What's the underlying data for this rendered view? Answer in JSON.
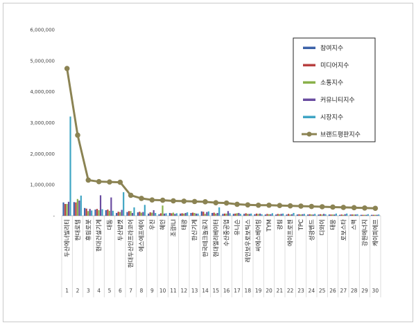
{
  "chart_data": {
    "type": "bar",
    "title": "",
    "xlabel": "",
    "ylabel": "",
    "ylim": [
      0,
      6000000
    ],
    "yticks": [
      "-",
      "1,000,000",
      "2,000,000",
      "3,000,000",
      "4,000,000",
      "5,000,000",
      "6,000,000"
    ],
    "ranks": [
      "1",
      "2",
      "3",
      "4",
      "5",
      "6",
      "7",
      "8",
      "9",
      "10",
      "11",
      "12",
      "13",
      "14",
      "15",
      "16",
      "17",
      "18",
      "19",
      "20",
      "21",
      "22",
      "23",
      "24",
      "25",
      "26",
      "27",
      "28",
      "29",
      "30"
    ],
    "categories": [
      "두산에너빌리티",
      "현대로템",
      "휴림로봇",
      "현대건설기계",
      "대동",
      "두산밥캣",
      "현대두산인프라코어",
      "에스에프에이",
      "우진",
      "혜인",
      "조광ILI",
      "태광",
      "한신기계",
      "한국테크놀로지",
      "현대엘리베이터",
      "수산중공업",
      "유니슨",
      "레인보우로보틱스",
      "씨에스베어링",
      "TYM",
      "광림",
      "에이프로젠",
      "TPC",
      "성광벤드",
      "디와이",
      "태웅",
      "로보스타",
      "스맥",
      "강원에너지",
      "케이피에프"
    ],
    "legend_position": "top-right",
    "grid": false,
    "series": [
      {
        "name": "참여지수",
        "color": "#3c62a8",
        "values": [
          430000,
          440000,
          250000,
          200000,
          180000,
          90000,
          120000,
          110000,
          70000,
          50000,
          90000,
          70000,
          90000,
          140000,
          90000,
          60000,
          60000,
          60000,
          50000,
          40000,
          40000,
          40000,
          40000,
          40000,
          40000,
          40000,
          30000,
          40000,
          30000,
          30000
        ]
      },
      {
        "name": "미디어지수",
        "color": "#b84040",
        "values": [
          380000,
          430000,
          230000,
          220000,
          200000,
          130000,
          150000,
          130000,
          110000,
          80000,
          80000,
          80000,
          100000,
          130000,
          100000,
          70000,
          70000,
          80000,
          70000,
          60000,
          60000,
          60000,
          50000,
          50000,
          50000,
          40000,
          40000,
          40000,
          30000,
          30000
        ]
      },
      {
        "name": "소통지수",
        "color": "#8ab04a",
        "values": [
          380000,
          540000,
          150000,
          180000,
          160000,
          120000,
          150000,
          100000,
          100000,
          330000,
          100000,
          70000,
          90000,
          60000,
          70000,
          70000,
          80000,
          60000,
          60000,
          50000,
          50000,
          40000,
          40000,
          40000,
          40000,
          40000,
          30000,
          40000,
          30000,
          30000
        ]
      },
      {
        "name": "커뮤니티지수",
        "color": "#6a4ca0",
        "values": [
          450000,
          490000,
          220000,
          660000,
          590000,
          190000,
          90000,
          120000,
          180000,
          70000,
          60000,
          90000,
          70000,
          120000,
          90000,
          150000,
          90000,
          60000,
          70000,
          50000,
          60000,
          50000,
          50000,
          40000,
          60000,
          40000,
          50000,
          40000,
          30000,
          30000
        ]
      },
      {
        "name": "시장지수",
        "color": "#3fa5c4",
        "values": [
          3200000,
          650000,
          170000,
          210000,
          160000,
          760000,
          270000,
          350000,
          90000,
          80000,
          80000,
          110000,
          70000,
          140000,
          270000,
          80000,
          60000,
          70000,
          50000,
          80000,
          70000,
          90000,
          60000,
          60000,
          50000,
          70000,
          70000,
          50000,
          50000,
          40000
        ]
      },
      {
        "name": "브랜드평판지수",
        "color": "#8b8353",
        "line": true,
        "values": [
          4750000,
          2600000,
          1150000,
          1100000,
          1090000,
          1080000,
          660000,
          560000,
          510000,
          500000,
          480000,
          470000,
          460000,
          450000,
          420000,
          410000,
          370000,
          350000,
          340000,
          340000,
          330000,
          320000,
          310000,
          300000,
          290000,
          280000,
          270000,
          260000,
          250000,
          240000
        ]
      }
    ]
  }
}
